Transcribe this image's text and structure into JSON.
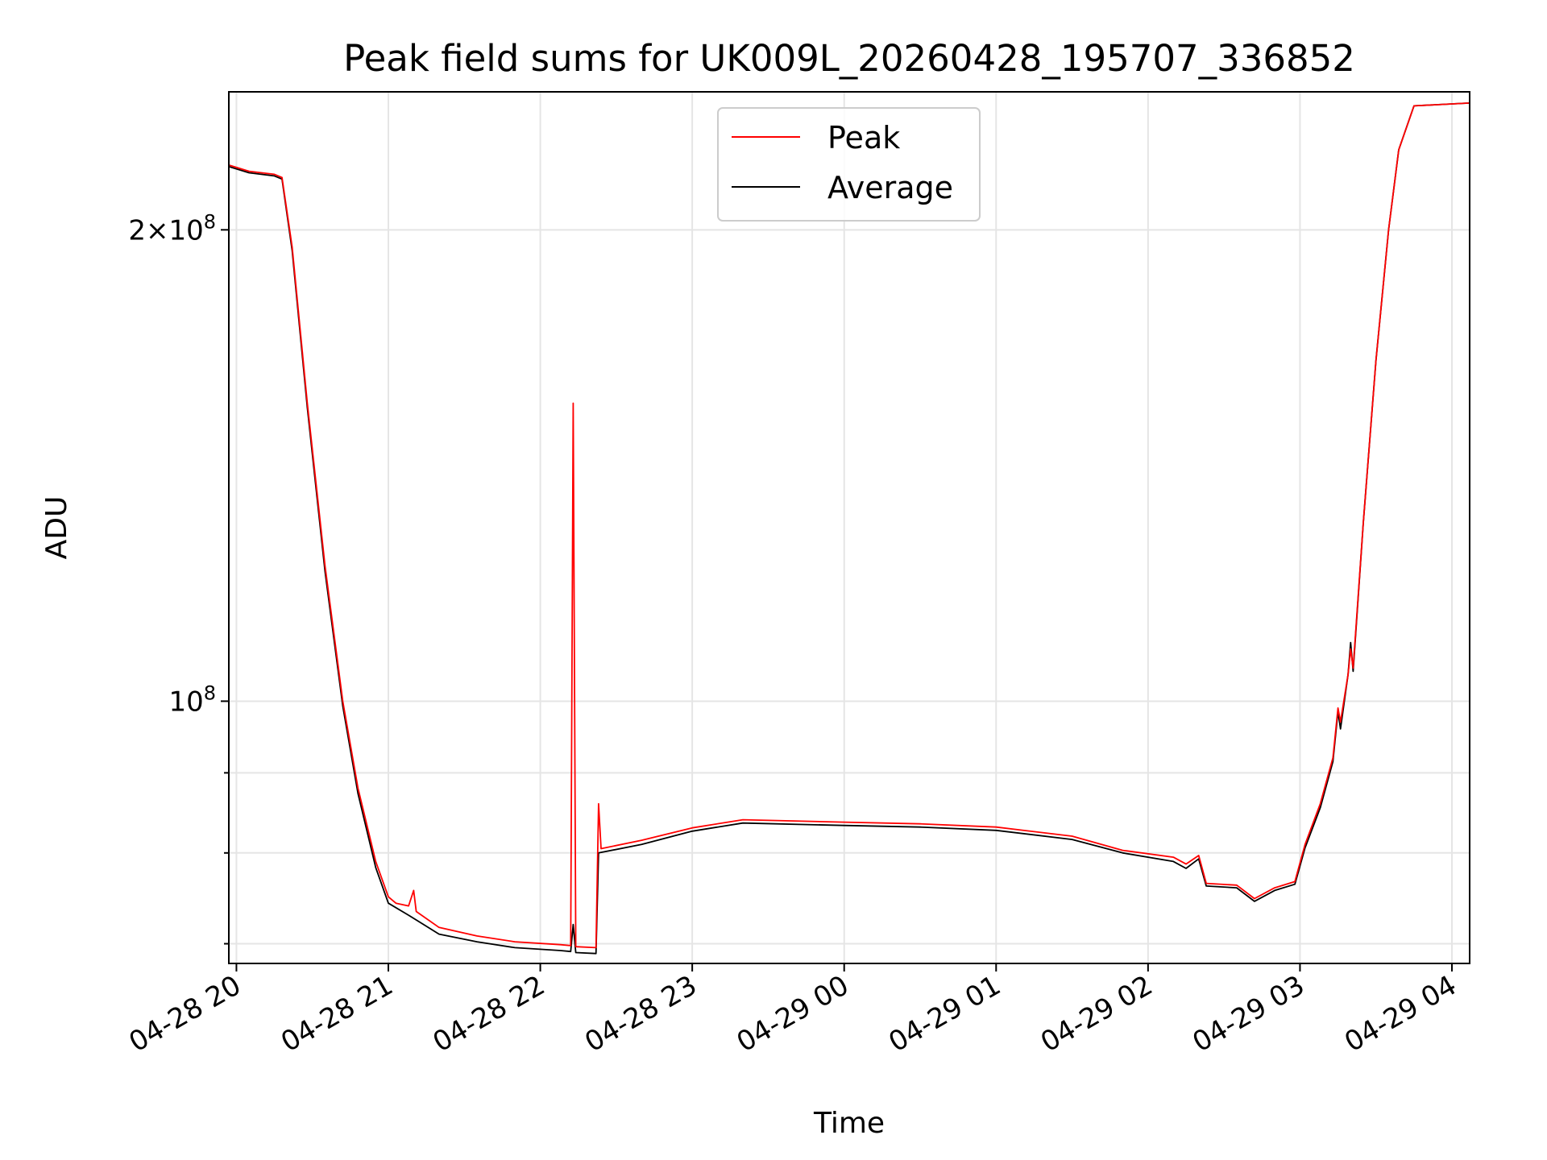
{
  "chart_data": {
    "type": "line",
    "title": "Peak field sums for UK009L_20260428_195707_336852",
    "xlabel": "Time",
    "ylabel": "ADU",
    "xscale": "time",
    "yscale": "log",
    "xlim": [
      "2026-04-28 19:57",
      "2026-04-29 04:07"
    ],
    "ylim": [
      68000000,
      245000000
    ],
    "x_ticks": [
      {
        "label": "04-28 20",
        "value": "2026-04-28 20:00"
      },
      {
        "label": "04-28 21",
        "value": "2026-04-28 21:00"
      },
      {
        "label": "04-28 22",
        "value": "2026-04-28 22:00"
      },
      {
        "label": "04-28 23",
        "value": "2026-04-28 23:00"
      },
      {
        "label": "04-29 00",
        "value": "2026-04-29 00:00"
      },
      {
        "label": "04-29 01",
        "value": "2026-04-29 01:00"
      },
      {
        "label": "04-29 02",
        "value": "2026-04-29 02:00"
      },
      {
        "label": "04-29 03",
        "value": "2026-04-29 03:00"
      },
      {
        "label": "04-29 04",
        "value": "2026-04-29 04:00"
      }
    ],
    "y_major_ticks": [
      {
        "base": "10",
        "exp": "8",
        "value": 100000000
      },
      {
        "mantissa": "2",
        "base": "10",
        "exp": "8",
        "value": 200000000
      }
    ],
    "y_minor_ticks": [
      70000000,
      80000000,
      90000000
    ],
    "grid": true,
    "legend": {
      "placement": "top-center"
    },
    "series": [
      {
        "name": "Peak",
        "color": "#ff0000",
        "points": [
          [
            "2026-04-28 19:57",
            220000000
          ],
          [
            "2026-04-28 20:05",
            218000000
          ],
          [
            "2026-04-28 20:15",
            217000000
          ],
          [
            "2026-04-28 20:18",
            216000000
          ],
          [
            "2026-04-28 20:22",
            195000000
          ],
          [
            "2026-04-28 20:28",
            155000000
          ],
          [
            "2026-04-28 20:35",
            122000000
          ],
          [
            "2026-04-28 20:42",
            100000000
          ],
          [
            "2026-04-28 20:48",
            88000000
          ],
          [
            "2026-04-28 20:55",
            79000000
          ],
          [
            "2026-04-28 21:00",
            75000000
          ],
          [
            "2026-04-28 21:03",
            74300000
          ],
          [
            "2026-04-28 21:08",
            74000000
          ],
          [
            "2026-04-28 21:10",
            75700000
          ],
          [
            "2026-04-28 21:11",
            73400000
          ],
          [
            "2026-04-28 21:20",
            71700000
          ],
          [
            "2026-04-28 21:35",
            70800000
          ],
          [
            "2026-04-28 21:50",
            70200000
          ],
          [
            "2026-04-28 22:08",
            69900000
          ],
          [
            "2026-04-28 22:12",
            69800000
          ],
          [
            "2026-04-28 22:13",
            155000000
          ],
          [
            "2026-04-28 22:14",
            69700000
          ],
          [
            "2026-04-28 22:22",
            69600000
          ],
          [
            "2026-04-28 22:23",
            86000000
          ],
          [
            "2026-04-28 22:24",
            80500000
          ],
          [
            "2026-04-28 22:40",
            81500000
          ],
          [
            "2026-04-28 23:00",
            83000000
          ],
          [
            "2026-04-28 23:20",
            84000000
          ],
          [
            "2026-04-29 00:00",
            83700000
          ],
          [
            "2026-04-29 00:30",
            83500000
          ],
          [
            "2026-04-29 01:00",
            83100000
          ],
          [
            "2026-04-29 01:30",
            82000000
          ],
          [
            "2026-04-29 01:50",
            80300000
          ],
          [
            "2026-04-29 02:10",
            79500000
          ],
          [
            "2026-04-29 02:15",
            78700000
          ],
          [
            "2026-04-29 02:20",
            79700000
          ],
          [
            "2026-04-29 02:23",
            76500000
          ],
          [
            "2026-04-29 02:35",
            76300000
          ],
          [
            "2026-04-29 02:42",
            74800000
          ],
          [
            "2026-04-29 02:50",
            76000000
          ],
          [
            "2026-04-29 02:58",
            76700000
          ],
          [
            "2026-04-29 03:02",
            81000000
          ],
          [
            "2026-04-29 03:08",
            86000000
          ],
          [
            "2026-04-29 03:13",
            92000000
          ],
          [
            "2026-04-29 03:15",
            99000000
          ],
          [
            "2026-04-29 03:16",
            97000000
          ],
          [
            "2026-04-29 03:19",
            104000000
          ],
          [
            "2026-04-29 03:20",
            108000000
          ],
          [
            "2026-04-29 03:21",
            105000000
          ],
          [
            "2026-04-29 03:25",
            130000000
          ],
          [
            "2026-04-29 03:30",
            165000000
          ],
          [
            "2026-04-29 03:35",
            200000000
          ],
          [
            "2026-04-29 03:39",
            225000000
          ],
          [
            "2026-04-29 03:45",
            240000000
          ],
          [
            "2026-04-29 04:07",
            241000000
          ]
        ]
      },
      {
        "name": "Average",
        "color": "#000000",
        "points": [
          [
            "2026-04-28 19:57",
            219500000
          ],
          [
            "2026-04-28 20:05",
            217500000
          ],
          [
            "2026-04-28 20:15",
            216500000
          ],
          [
            "2026-04-28 20:18",
            215500000
          ],
          [
            "2026-04-28 20:22",
            194000000
          ],
          [
            "2026-04-28 20:28",
            154000000
          ],
          [
            "2026-04-28 20:35",
            121000000
          ],
          [
            "2026-04-28 20:42",
            99300000
          ],
          [
            "2026-04-28 20:48",
            87300000
          ],
          [
            "2026-04-28 20:55",
            78300000
          ],
          [
            "2026-04-28 21:00",
            74300000
          ],
          [
            "2026-04-28 21:08",
            73000000
          ],
          [
            "2026-04-28 21:20",
            71000000
          ],
          [
            "2026-04-28 21:35",
            70200000
          ],
          [
            "2026-04-28 21:50",
            69600000
          ],
          [
            "2026-04-28 22:08",
            69300000
          ],
          [
            "2026-04-28 22:12",
            69200000
          ],
          [
            "2026-04-28 22:13",
            72000000
          ],
          [
            "2026-04-28 22:14",
            69100000
          ],
          [
            "2026-04-28 22:22",
            69000000
          ],
          [
            "2026-04-28 22:23",
            80000000
          ],
          [
            "2026-04-28 22:40",
            81000000
          ],
          [
            "2026-04-28 23:00",
            82600000
          ],
          [
            "2026-04-28 23:20",
            83600000
          ],
          [
            "2026-04-29 00:00",
            83300000
          ],
          [
            "2026-04-29 00:30",
            83100000
          ],
          [
            "2026-04-29 01:00",
            82700000
          ],
          [
            "2026-04-29 01:30",
            81600000
          ],
          [
            "2026-04-29 01:50",
            80000000
          ],
          [
            "2026-04-29 02:10",
            79000000
          ],
          [
            "2026-04-29 02:15",
            78200000
          ],
          [
            "2026-04-29 02:20",
            79300000
          ],
          [
            "2026-04-29 02:23",
            76200000
          ],
          [
            "2026-04-29 02:35",
            76000000
          ],
          [
            "2026-04-29 02:42",
            74500000
          ],
          [
            "2026-04-29 02:50",
            75700000
          ],
          [
            "2026-04-29 02:58",
            76400000
          ],
          [
            "2026-04-29 03:02",
            80600000
          ],
          [
            "2026-04-29 03:08",
            85500000
          ],
          [
            "2026-04-29 03:13",
            91500000
          ],
          [
            "2026-04-29 03:15",
            98500000
          ],
          [
            "2026-04-29 03:16",
            96000000
          ],
          [
            "2026-04-29 03:19",
            104000000
          ],
          [
            "2026-04-29 03:20",
            109000000
          ],
          [
            "2026-04-29 03:21",
            104500000
          ],
          [
            "2026-04-29 03:25",
            130000000
          ],
          [
            "2026-04-29 03:30",
            165000000
          ],
          [
            "2026-04-29 03:35",
            200000000
          ],
          [
            "2026-04-29 03:39",
            225000000
          ],
          [
            "2026-04-29 03:45",
            240000000
          ],
          [
            "2026-04-29 04:07",
            241000000
          ]
        ]
      }
    ]
  }
}
